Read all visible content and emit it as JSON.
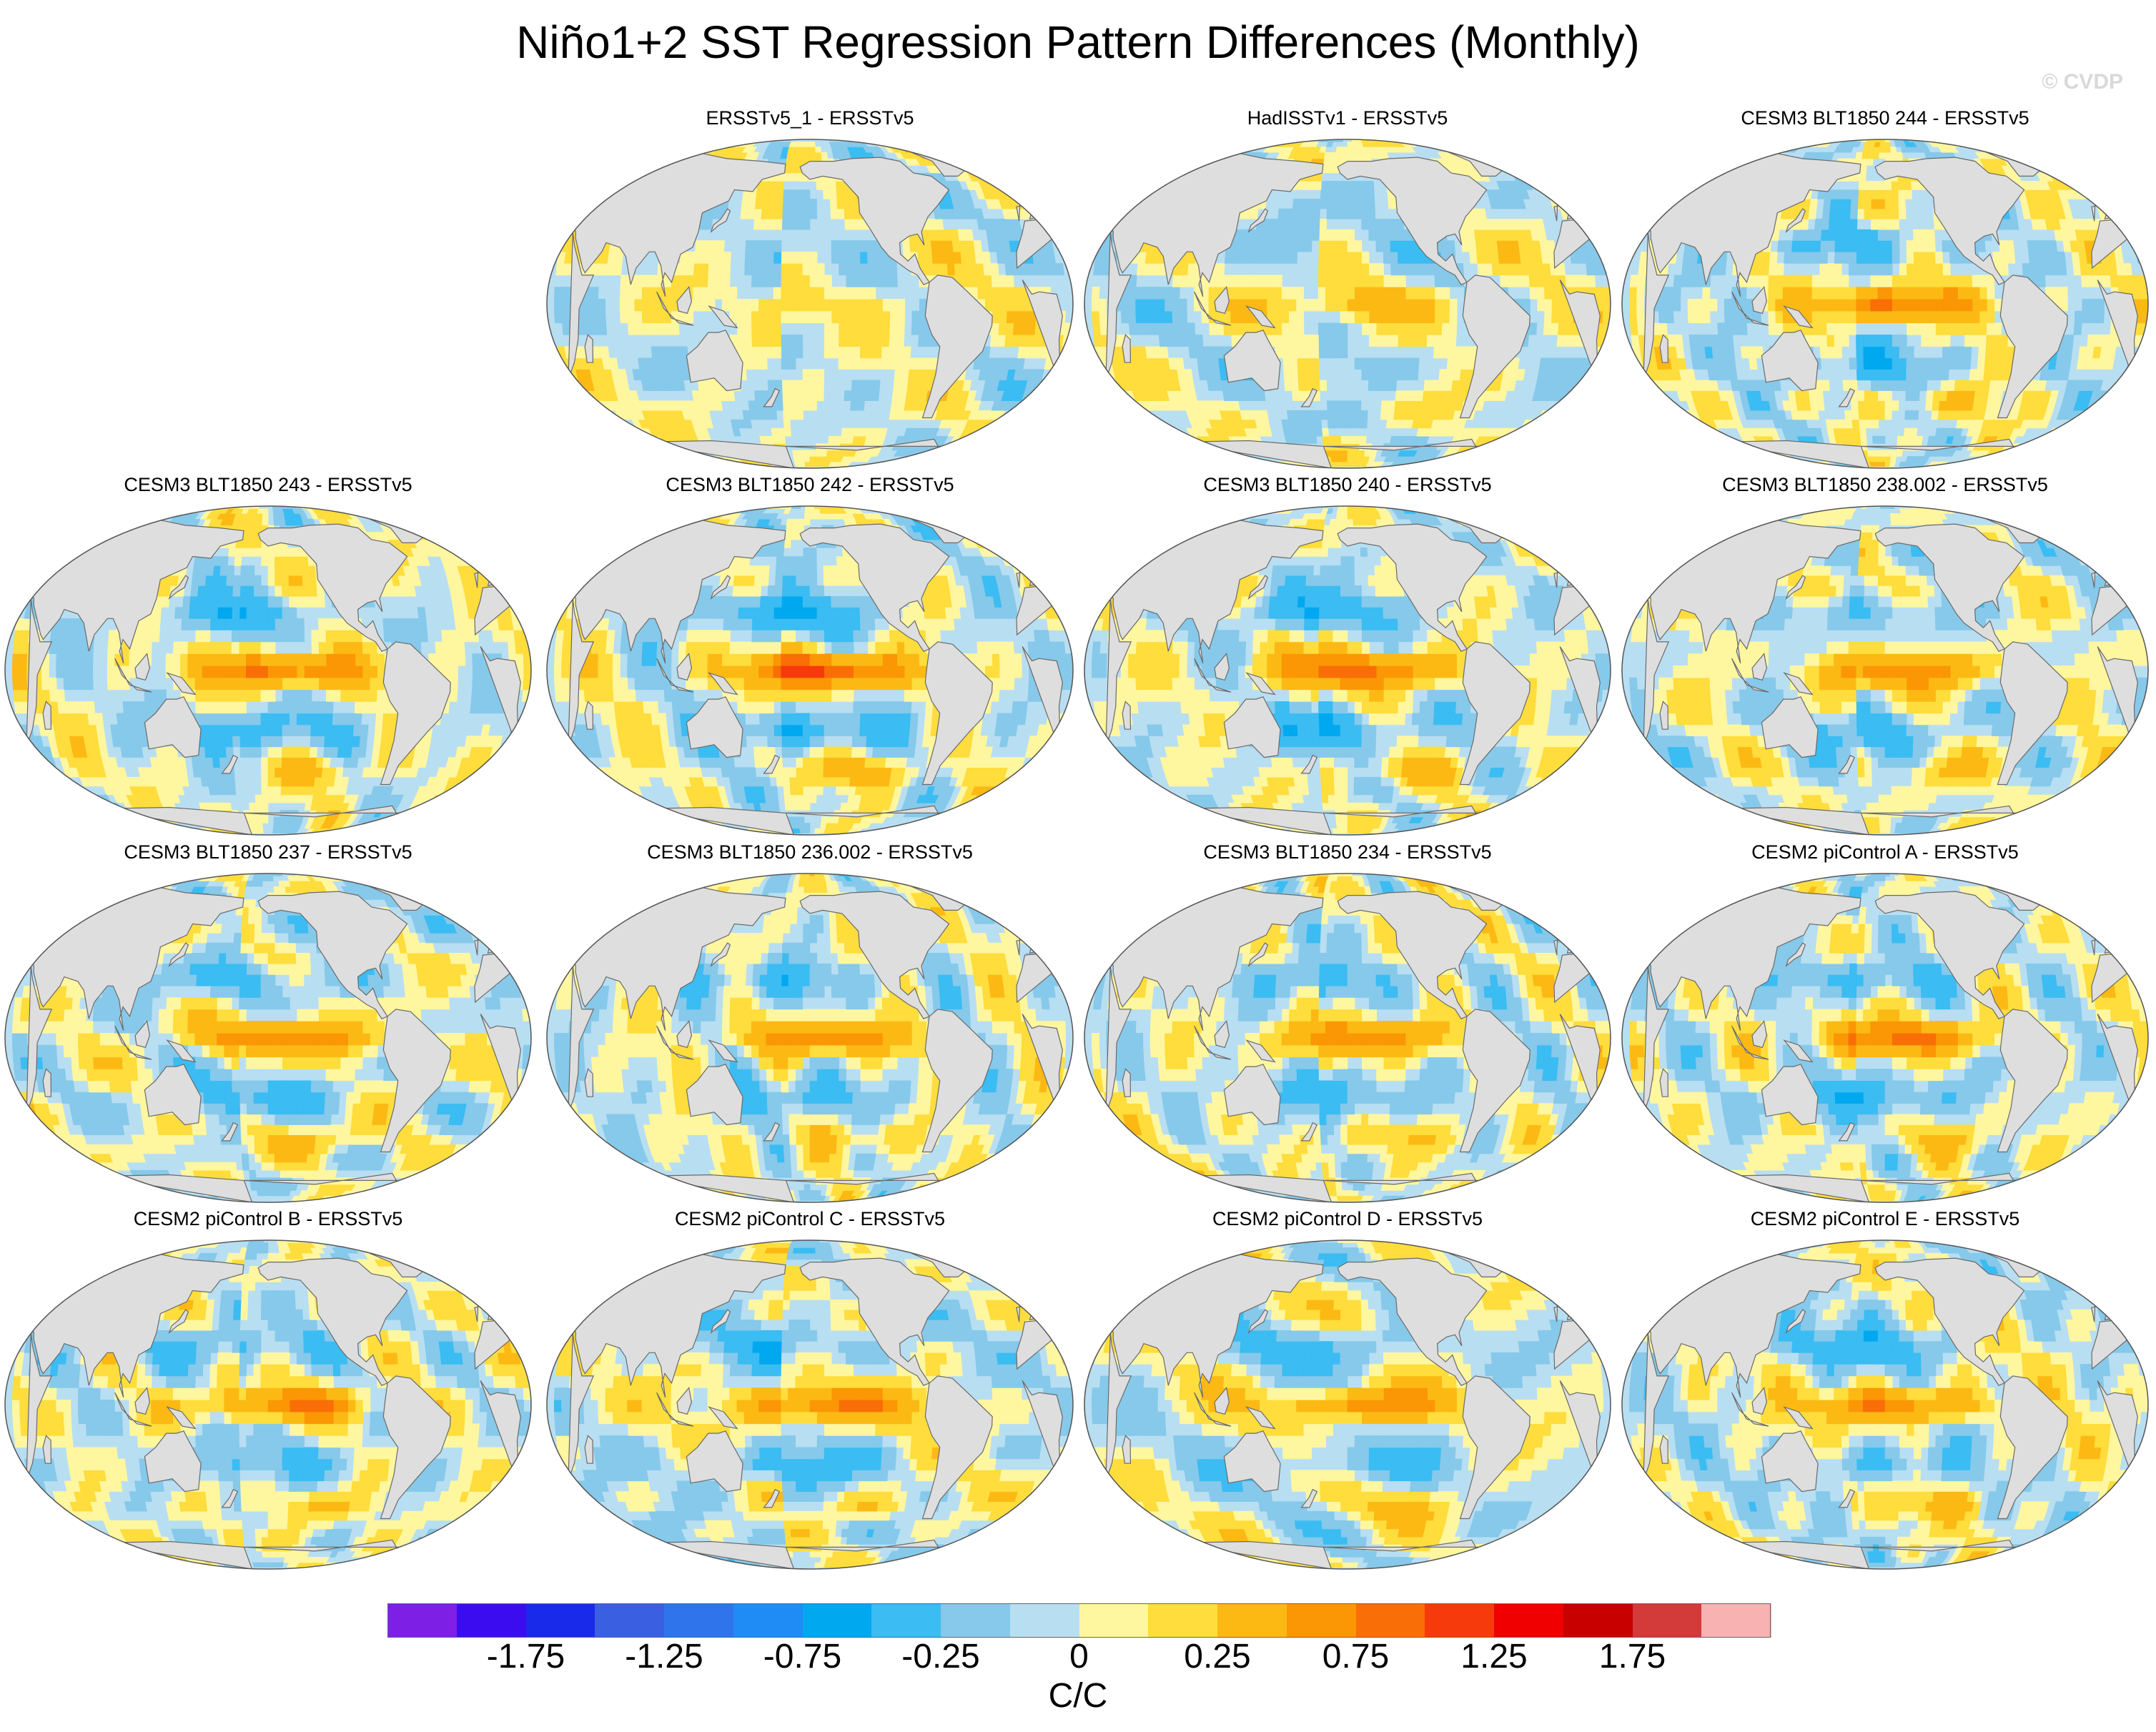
{
  "title": "Niño1+2 SST Regression Pattern Differences (Monthly)",
  "credit": "© CVDP",
  "panels": [
    {
      "label": "ERSSTv5_1 - ERSSTv5",
      "amp": 0.15
    },
    {
      "label": "HadISSTv1 - ERSSTv5",
      "amp": 0.3
    },
    {
      "label": "CESM3 BLT1850 244 - ERSSTv5",
      "amp": 0.75
    },
    {
      "label": "CESM3 BLT1850 243 - ERSSTv5",
      "amp": 0.8
    },
    {
      "label": "CESM3 BLT1850 242 - ERSSTv5",
      "amp": 1.1
    },
    {
      "label": "CESM3 BLT1850 240 - ERSSTv5",
      "amp": 0.85
    },
    {
      "label": "CESM3 BLT1850 238.002 - ERSSTv5",
      "amp": 0.7
    },
    {
      "label": "CESM3 BLT1850 237 - ERSSTv5",
      "amp": 0.75
    },
    {
      "label": "CESM3 BLT1850 236.002 - ERSSTv5",
      "amp": 0.7
    },
    {
      "label": "CESM3 BLT1850 234 - ERSSTv5",
      "amp": 0.7
    },
    {
      "label": "CESM2 piControl A - ERSSTv5",
      "amp": 0.8
    },
    {
      "label": "CESM2 piControl B - ERSSTv5",
      "amp": 0.75
    },
    {
      "label": "CESM2 piControl C - ERSSTv5",
      "amp": 0.75
    },
    {
      "label": "CESM2 piControl D - ERSSTv5",
      "amp": 0.75
    },
    {
      "label": "CESM2 piControl E - ERSSTv5",
      "amp": 0.75
    }
  ],
  "colorbar": {
    "colors": [
      "#7e1fe6",
      "#3b0cf0",
      "#1a2aea",
      "#3a5fe0",
      "#2f74ea",
      "#1f8cf5",
      "#00a8f0",
      "#3bbcf2",
      "#86c9ea",
      "#b8def2",
      "#fff6a0",
      "#fedd3c",
      "#fcb914",
      "#fb9704",
      "#f96e06",
      "#f63a0b",
      "#f00000",
      "#c80000",
      "#d33a3a",
      "#f9b2b2"
    ],
    "tick_labels": [
      "-1.75",
      "-1.25",
      "-0.75",
      "-0.25",
      "0",
      "0.25",
      "0.75",
      "1.25",
      "1.75"
    ],
    "tick_values": [
      -1.75,
      -1.25,
      -0.75,
      -0.25,
      0,
      0.25,
      0.75,
      1.25,
      1.75
    ],
    "levels": [
      -2,
      -1.75,
      -1.5,
      -1.25,
      -1,
      -0.75,
      -0.5,
      -0.25,
      -0.1,
      0,
      0.1,
      0.25,
      0.5,
      0.75,
      1,
      1.25,
      1.5,
      1.75,
      2
    ],
    "unit": "C/C"
  },
  "land_color": "#dedede"
}
